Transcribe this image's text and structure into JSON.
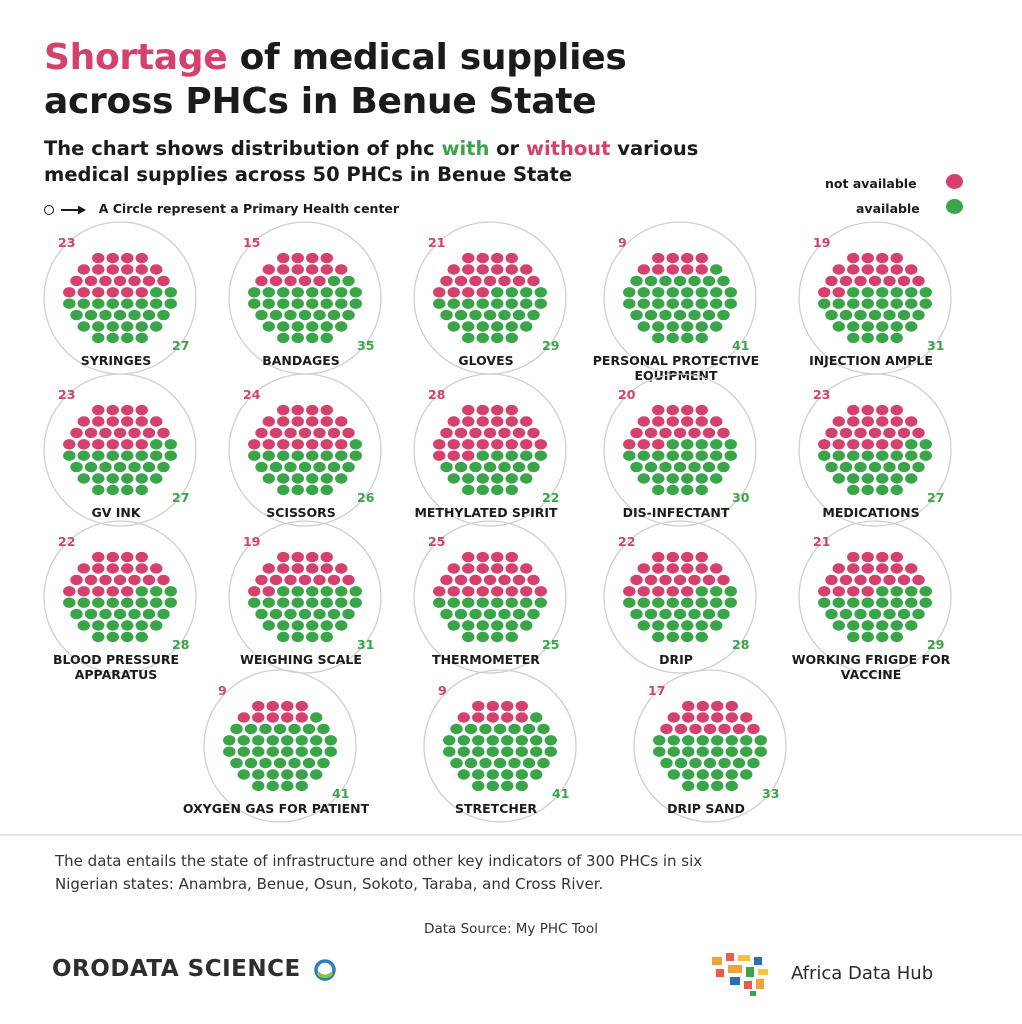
{
  "title": {
    "accent": "Shortage",
    "line1_rest": " of medical supplies",
    "line2": "across PHCs in Benue State"
  },
  "subtitle": {
    "part1": "The chart shows distribution of  phc ",
    "with": "with",
    "or": " or ",
    "without": "without",
    "part2": " various",
    "line2": "medical supplies across 50 PHCs in Benue State"
  },
  "legend": {
    "not_available": "not available",
    "available": "available"
  },
  "circle_note": "A Circle represent a Primary Health center",
  "colors": {
    "not_available": "#d4416c",
    "available": "#3aa548",
    "ring": "#cfcfcf"
  },
  "chart_data": {
    "type": "waffle",
    "total_per_panel": 50,
    "series": [
      {
        "name": "not available",
        "color": "#d4416c"
      },
      {
        "name": "available",
        "color": "#3aa548"
      }
    ],
    "panels": [
      {
        "label": [
          "SYRINGES"
        ],
        "not_available": 23,
        "available": 27
      },
      {
        "label": [
          "BANDAGES"
        ],
        "not_available": 15,
        "available": 35
      },
      {
        "label": [
          "GLOVES"
        ],
        "not_available": 21,
        "available": 29
      },
      {
        "label": [
          "PERSONAL PROTECTIVE",
          "EQUIPMENT"
        ],
        "not_available": 9,
        "available": 41
      },
      {
        "label": [
          "INJECTION AMPLE"
        ],
        "not_available": 19,
        "available": 31
      },
      {
        "label": [
          "GV INK"
        ],
        "not_available": 23,
        "available": 27
      },
      {
        "label": [
          "SCISSORS"
        ],
        "not_available": 24,
        "available": 26
      },
      {
        "label": [
          "METHYLATED SPIRIT"
        ],
        "not_available": 28,
        "available": 22
      },
      {
        "label": [
          "DIS-INFECTANT"
        ],
        "not_available": 20,
        "available": 30
      },
      {
        "label": [
          "MEDICATIONS"
        ],
        "not_available": 23,
        "available": 27
      },
      {
        "label": [
          "BLOOD PRESSURE",
          "APPARATUS"
        ],
        "not_available": 22,
        "available": 28
      },
      {
        "label": [
          "WEIGHING SCALE"
        ],
        "not_available": 19,
        "available": 31
      },
      {
        "label": [
          "THERMOMETER"
        ],
        "not_available": 25,
        "available": 25
      },
      {
        "label": [
          "DRIP"
        ],
        "not_available": 22,
        "available": 28
      },
      {
        "label": [
          "WORKING FRIGDE FOR",
          "VACCINE"
        ],
        "not_available": 21,
        "available": 29
      },
      {
        "label": [
          "OXYGEN GAS FOR PATIENT"
        ],
        "not_available": 9,
        "available": 41
      },
      {
        "label": [
          "STRETCHER"
        ],
        "not_available": 9,
        "available": 41
      },
      {
        "label": [
          "DRIP SAND"
        ],
        "not_available": 17,
        "available": 33
      }
    ]
  },
  "footer": {
    "note_line1": "The data entails the state of infrastructure and other key indicators of 300 PHCs in six",
    "note_line2": "Nigerian states: Anambra, Benue, Osun, Sokoto, Taraba, and Cross River.",
    "source": "Data Source: My PHC Tool",
    "logo_left": "ORODATA SCIENCE",
    "logo_right": "Africa Data Hub"
  }
}
